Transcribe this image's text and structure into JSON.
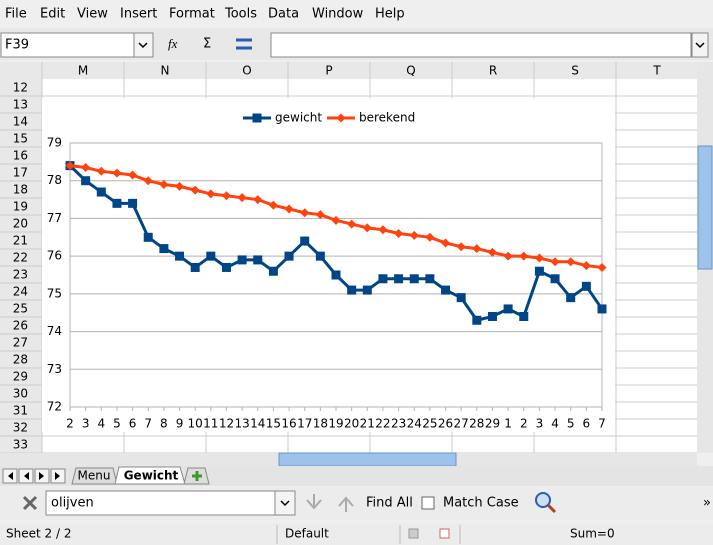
{
  "menu": [
    "File",
    "Edit",
    "View",
    "Insert",
    "Format",
    "Tools",
    "Data",
    "Window",
    "Help"
  ],
  "name_box": "F39",
  "column_headers": [
    "M",
    "N",
    "O",
    "P",
    "Q",
    "R",
    "S",
    "T"
  ],
  "row_headers": [
    "12",
    "13",
    "14",
    "15",
    "16",
    "17",
    "18",
    "19",
    "20",
    "21",
    "22",
    "23",
    "24",
    "25",
    "26",
    "27",
    "28",
    "29",
    "30",
    "31",
    "32",
    "33"
  ],
  "sheet_tabs": [
    "Menu",
    "Gewicht"
  ],
  "find_toolbar": {
    "search_text": "olijven",
    "find_all": "Find All",
    "match_case": "Match Case"
  },
  "status_bar": {
    "sheet": "Sheet 2 / 2",
    "page_style": "Default",
    "sum": "Sum=0"
  },
  "chart_data": {
    "type": "line",
    "categories": [
      "2",
      "3",
      "4",
      "5",
      "6",
      "7",
      "8",
      "9",
      "10",
      "11",
      "12",
      "13",
      "14",
      "15",
      "16",
      "17",
      "18",
      "19",
      "20",
      "21",
      "22",
      "23",
      "24",
      "25",
      "26",
      "27",
      "28",
      "29",
      "1",
      "2",
      "3",
      "4",
      "5",
      "6",
      "7"
    ],
    "series": [
      {
        "name": "gewicht",
        "color": "#004586",
        "marker": "square",
        "values": [
          78.4,
          78.0,
          77.7,
          77.4,
          77.4,
          76.5,
          76.2,
          76.0,
          75.7,
          76.0,
          75.7,
          75.9,
          75.9,
          75.6,
          76.0,
          76.4,
          76.0,
          75.5,
          75.1,
          75.1,
          75.4,
          75.4,
          75.4,
          75.4,
          75.1,
          74.9,
          74.3,
          74.4,
          74.6,
          74.4,
          75.6,
          75.4,
          74.9,
          75.2,
          74.6
        ]
      },
      {
        "name": "berekend",
        "color": "#ff420e",
        "marker": "diamond",
        "values": [
          78.4,
          78.35,
          78.25,
          78.2,
          78.15,
          78.0,
          77.9,
          77.85,
          77.75,
          77.65,
          77.6,
          77.55,
          77.5,
          77.35,
          77.25,
          77.15,
          77.1,
          76.95,
          76.85,
          76.75,
          76.7,
          76.6,
          76.55,
          76.5,
          76.35,
          76.25,
          76.2,
          76.1,
          76.0,
          76.0,
          75.95,
          75.85,
          75.85,
          75.75,
          75.7
        ]
      }
    ],
    "ylim": [
      72,
      79
    ],
    "yticks": [
      72,
      73,
      74,
      75,
      76,
      77,
      78,
      79
    ],
    "grid": true,
    "legend": "top"
  }
}
